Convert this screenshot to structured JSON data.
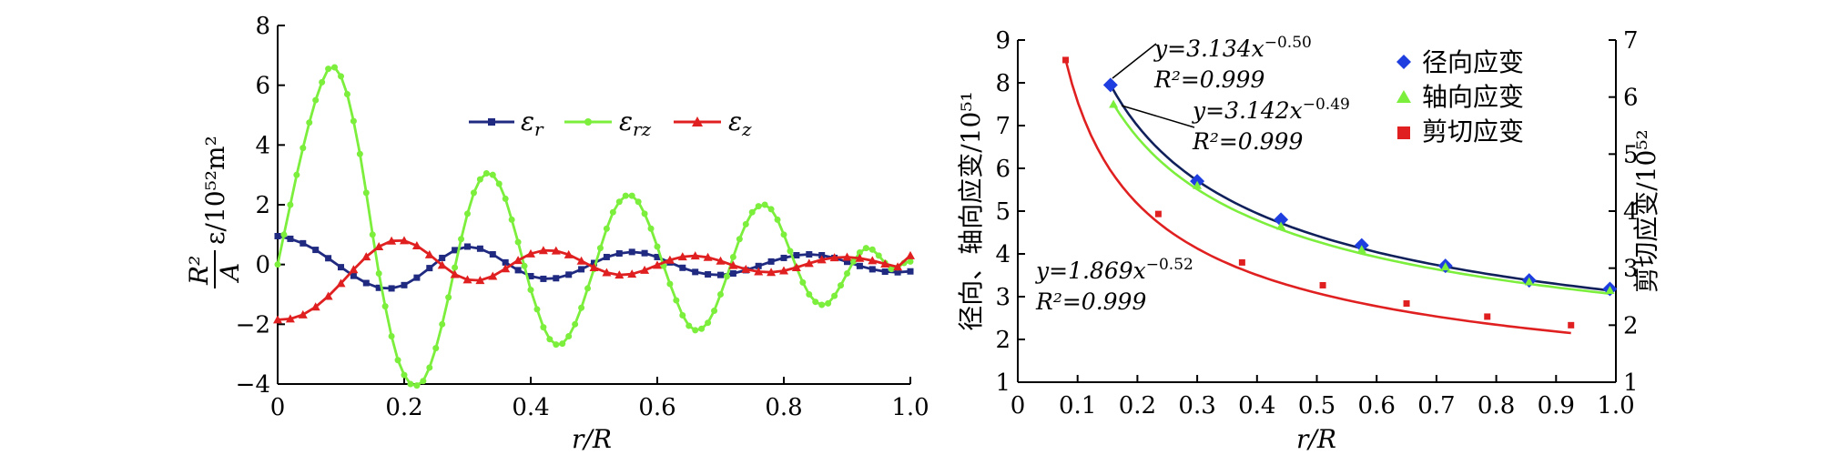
{
  "chart_data": [
    {
      "type": "line",
      "xlabel": "r/R",
      "ylabel_top": "R²",
      "ylabel_bottom": "A",
      "ylabel_rest": "ε/10⁵²m²",
      "xlim": [
        0,
        1.0
      ],
      "ylim": [
        -4,
        8
      ],
      "xticks": [
        "0",
        "0.2",
        "0.4",
        "0.6",
        "0.8",
        "1.0"
      ],
      "yticks": [
        "−4",
        "−2",
        "0",
        "2",
        "4",
        "6",
        "8"
      ],
      "legend_position": "upper-center",
      "series": [
        {
          "name": "εr",
          "label_main": "ε",
          "label_sub": "r",
          "color": "#1f2a80",
          "marker": "square",
          "x": [
            0,
            0.02,
            0.04,
            0.06,
            0.08,
            0.1,
            0.12,
            0.14,
            0.16,
            0.18,
            0.2,
            0.22,
            0.24,
            0.26,
            0.28,
            0.3,
            0.32,
            0.34,
            0.36,
            0.38,
            0.4,
            0.42,
            0.44,
            0.46,
            0.48,
            0.5,
            0.52,
            0.54,
            0.56,
            0.58,
            0.6,
            0.62,
            0.64,
            0.66,
            0.68,
            0.7,
            0.72,
            0.74,
            0.76,
            0.78,
            0.8,
            0.82,
            0.84,
            0.86,
            0.88,
            0.9,
            0.92,
            0.94,
            0.96,
            0.98,
            1.0
          ],
          "y": [
            0.95,
            0.86,
            0.71,
            0.49,
            0.21,
            -0.09,
            -0.38,
            -0.62,
            -0.78,
            -0.8,
            -0.69,
            -0.44,
            -0.12,
            0.22,
            0.48,
            0.6,
            0.53,
            0.34,
            0.07,
            -0.19,
            -0.39,
            -0.48,
            -0.46,
            -0.34,
            -0.16,
            0.05,
            0.25,
            0.37,
            0.42,
            0.38,
            0.25,
            0.07,
            -0.11,
            -0.25,
            -0.33,
            -0.35,
            -0.3,
            -0.19,
            -0.05,
            0.1,
            0.22,
            0.31,
            0.34,
            0.31,
            0.22,
            0.09,
            -0.05,
            -0.16,
            -0.24,
            -0.26,
            -0.23
          ]
        },
        {
          "name": "εrz",
          "label_main": "ε",
          "label_sub": "rz",
          "color": "#7cee3c",
          "marker": "dot",
          "x": [
            0,
            0.01,
            0.02,
            0.03,
            0.04,
            0.05,
            0.06,
            0.07,
            0.08,
            0.09,
            0.1,
            0.11,
            0.12,
            0.13,
            0.14,
            0.15,
            0.16,
            0.17,
            0.18,
            0.19,
            0.2,
            0.21,
            0.22,
            0.23,
            0.24,
            0.25,
            0.26,
            0.27,
            0.28,
            0.29,
            0.3,
            0.31,
            0.32,
            0.33,
            0.34,
            0.35,
            0.36,
            0.37,
            0.38,
            0.39,
            0.4,
            0.41,
            0.42,
            0.43,
            0.44,
            0.45,
            0.46,
            0.47,
            0.48,
            0.49,
            0.5,
            0.51,
            0.52,
            0.53,
            0.54,
            0.55,
            0.56,
            0.57,
            0.58,
            0.59,
            0.6,
            0.61,
            0.62,
            0.63,
            0.64,
            0.65,
            0.66,
            0.67,
            0.68,
            0.69,
            0.7,
            0.71,
            0.72,
            0.73,
            0.74,
            0.75,
            0.76,
            0.77,
            0.78,
            0.79,
            0.8,
            0.81,
            0.82,
            0.83,
            0.84,
            0.85,
            0.86,
            0.87,
            0.88,
            0.89,
            0.9,
            0.91,
            0.92,
            0.93,
            0.94,
            0.95,
            0.96,
            0.97,
            0.98,
            0.99,
            1.0
          ],
          "y": [
            0,
            1.0,
            2.0,
            3.0,
            3.9,
            4.75,
            5.5,
            6.1,
            6.55,
            6.6,
            6.3,
            5.7,
            4.8,
            3.7,
            2.4,
            1.0,
            -0.3,
            -1.4,
            -2.4,
            -3.2,
            -3.7,
            -4.0,
            -4.05,
            -3.9,
            -3.45,
            -2.8,
            -2.0,
            -1.1,
            -0.1,
            0.85,
            1.7,
            2.4,
            2.85,
            3.05,
            3.0,
            2.7,
            2.2,
            1.5,
            0.75,
            -0.05,
            -0.85,
            -1.5,
            -2.1,
            -2.5,
            -2.68,
            -2.65,
            -2.4,
            -2.0,
            -1.45,
            -0.8,
            -0.15,
            0.55,
            1.2,
            1.75,
            2.1,
            2.3,
            2.3,
            2.1,
            1.7,
            1.2,
            0.6,
            -0.05,
            -0.65,
            -1.2,
            -1.7,
            -2.05,
            -2.2,
            -2.15,
            -1.95,
            -1.55,
            -1.0,
            -0.4,
            0.25,
            0.85,
            1.35,
            1.75,
            1.95,
            2.0,
            1.85,
            1.5,
            1.0,
            0.45,
            -0.1,
            -0.6,
            -1.0,
            -1.25,
            -1.35,
            -1.3,
            -1.05,
            -0.7,
            -0.3,
            0.1,
            0.4,
            0.55,
            0.5,
            0.3,
            0.05,
            -0.15,
            -0.1,
            0.05,
            0.1
          ]
        },
        {
          "name": "εz",
          "label_main": "ε",
          "label_sub": "z",
          "color": "#e02020",
          "marker": "triangle",
          "x": [
            0,
            0.02,
            0.04,
            0.06,
            0.08,
            0.1,
            0.12,
            0.14,
            0.16,
            0.18,
            0.2,
            0.22,
            0.24,
            0.26,
            0.28,
            0.3,
            0.32,
            0.34,
            0.36,
            0.38,
            0.4,
            0.42,
            0.44,
            0.46,
            0.48,
            0.5,
            0.52,
            0.54,
            0.56,
            0.58,
            0.6,
            0.62,
            0.64,
            0.66,
            0.68,
            0.7,
            0.72,
            0.74,
            0.76,
            0.78,
            0.8,
            0.82,
            0.84,
            0.86,
            0.88,
            0.9,
            0.92,
            0.94,
            0.96,
            0.98,
            1.0
          ],
          "y": [
            -1.85,
            -1.82,
            -1.68,
            -1.42,
            -1.06,
            -0.63,
            -0.17,
            0.26,
            0.6,
            0.79,
            0.8,
            0.63,
            0.33,
            -0.02,
            -0.33,
            -0.51,
            -0.53,
            -0.39,
            -0.14,
            0.14,
            0.36,
            0.47,
            0.46,
            0.33,
            0.12,
            -0.1,
            -0.27,
            -0.35,
            -0.32,
            -0.19,
            -0.02,
            0.15,
            0.26,
            0.29,
            0.24,
            0.12,
            -0.03,
            -0.16,
            -0.24,
            -0.26,
            -0.21,
            -0.1,
            0.04,
            0.16,
            0.23,
            0.25,
            0.21,
            0.13,
            0.02,
            -0.08,
            0.3
          ]
        }
      ]
    },
    {
      "type": "scatter",
      "xlabel": "r/R",
      "ylabel_left": "径向、轴向应变/10⁵¹",
      "ylabel_right": "剪切应变/10⁵²",
      "xlim": [
        0,
        1.0
      ],
      "ylim_left": [
        1,
        9
      ],
      "ylim_right": [
        1,
        7
      ],
      "xticks": [
        "0",
        "0.1",
        "0.2",
        "0.3",
        "0.4",
        "0.5",
        "0.6",
        "0.7",
        "0.8",
        "0.9",
        "1.0"
      ],
      "yticks_left": [
        "1",
        "2",
        "3",
        "4",
        "5",
        "6",
        "7",
        "8",
        "9"
      ],
      "yticks_right": [
        "1",
        "2",
        "3",
        "4",
        "5",
        "6",
        "7"
      ],
      "legend_position": "upper-right",
      "series": [
        {
          "name": "径向应变",
          "axis": "left",
          "color": "#1f3ee0",
          "marker": "diamond",
          "x": [
            0.155,
            0.3,
            0.44,
            0.575,
            0.715,
            0.855,
            0.99
          ],
          "y": [
            7.95,
            5.7,
            4.8,
            4.2,
            3.72,
            3.38,
            3.18
          ],
          "fit": {
            "a": 3.134,
            "b": -0.5,
            "r2": 0.999
          },
          "fit_color": "#10205a"
        },
        {
          "name": "轴向应变",
          "axis": "left",
          "color": "#7cee3c",
          "marker": "triangle",
          "x": [
            0.16,
            0.3,
            0.44,
            0.575,
            0.715,
            0.855,
            0.99
          ],
          "y": [
            7.5,
            5.6,
            4.65,
            4.1,
            3.7,
            3.35,
            3.15
          ],
          "fit": {
            "a": 3.142,
            "b": -0.49,
            "r2": 0.999
          },
          "fit_color": "#7cee3c"
        },
        {
          "name": "剪切应变",
          "axis": "right",
          "color": "#e02020",
          "marker": "square",
          "x": [
            0.08,
            0.235,
            0.375,
            0.51,
            0.65,
            0.785,
            0.925
          ],
          "y": [
            6.65,
            3.95,
            3.1,
            2.7,
            2.38,
            2.15,
            2.0
          ],
          "fit": {
            "a": 1.869,
            "b": -0.52,
            "r2": 0.999
          },
          "fit_color": "#e02020"
        }
      ],
      "annotations": [
        {
          "eq": "y=3.134x",
          "exp": "−0.50",
          "r2": "R²=0.999"
        },
        {
          "eq": "y=3.142x",
          "exp": "−0.49",
          "r2": "R²=0.999"
        },
        {
          "eq": "y=1.869x",
          "exp": "−0.52",
          "r2": "R²=0.999"
        }
      ]
    }
  ]
}
